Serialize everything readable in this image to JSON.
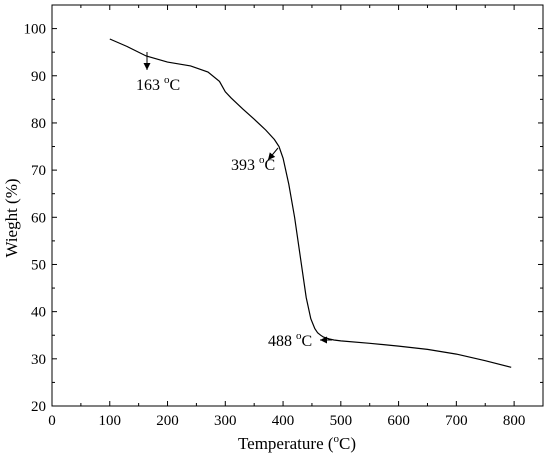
{
  "chart_data": {
    "type": "line",
    "xlabel": "Temperature (°C)",
    "ylabel": "Wieght (%)",
    "xlim": [
      0,
      850
    ],
    "ylim": [
      20,
      105
    ],
    "xticks": [
      0,
      100,
      200,
      300,
      400,
      500,
      600,
      700,
      800
    ],
    "yticks": [
      20,
      30,
      40,
      50,
      60,
      70,
      80,
      90,
      100
    ],
    "grid": false,
    "series": [
      {
        "x": [
          100,
          130,
          163,
          200,
          240,
          270,
          290,
          300,
          310,
          330,
          350,
          370,
          385,
          393,
          400,
          410,
          420,
          430,
          440,
          448,
          455,
          460,
          465,
          470,
          480,
          488,
          500,
          550,
          600,
          650,
          700,
          750,
          795
        ],
        "y": [
          97.8,
          96.2,
          94.2,
          92.9,
          92.1,
          90.8,
          88.8,
          86.6,
          85.3,
          83.0,
          80.8,
          78.5,
          76.5,
          75.0,
          72.5,
          67.0,
          60.0,
          51.5,
          43.0,
          38.5,
          36.4,
          35.5,
          35.0,
          34.6,
          34.2,
          34.0,
          33.8,
          33.3,
          32.7,
          32.0,
          31.0,
          29.6,
          28.2
        ]
      }
    ],
    "annotations": [
      {
        "x": 163,
        "y": 94.2,
        "value": "163",
        "unit": "oC"
      },
      {
        "x": 393,
        "y": 75.0,
        "value": "393",
        "unit": "oC"
      },
      {
        "x": 488,
        "y": 34.0,
        "value": "488",
        "unit": "oC"
      }
    ]
  }
}
